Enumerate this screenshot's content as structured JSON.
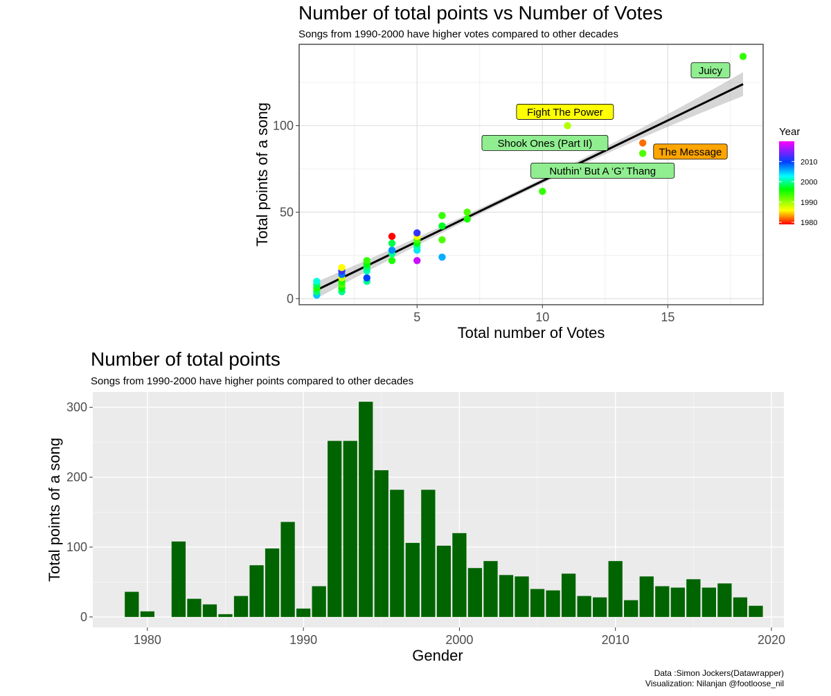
{
  "chart_data": [
    {
      "type": "scatter",
      "title": "Number of total points vs Number of Votes",
      "subtitle": "Songs from 1990-2000 have higher votes compared to other decades",
      "xlabel": "Total number of Votes",
      "ylabel": "Total points of a song",
      "xlim": [
        0.3,
        18.8
      ],
      "ylim": [
        -3.5,
        147
      ],
      "x_ticks": [
        5,
        10,
        15
      ],
      "y_ticks": [
        0,
        50,
        100
      ],
      "grid": true,
      "legend": {
        "title": "Year",
        "position": "right",
        "colorbar_range": [
          1979,
          2020
        ],
        "ticks": [
          1980,
          1990,
          2000,
          2010
        ]
      },
      "trend_line": {
        "x": [
          1,
          18
        ],
        "y": [
          5,
          124
        ],
        "ci_band": true
      },
      "points": [
        {
          "x": 1,
          "y": 2,
          "year": 2005
        },
        {
          "x": 1,
          "y": 4,
          "year": 1999
        },
        {
          "x": 1,
          "y": 6,
          "year": 1995
        },
        {
          "x": 1,
          "y": 8,
          "year": 1998
        },
        {
          "x": 1,
          "y": 10,
          "year": 2002
        },
        {
          "x": 2,
          "y": 4,
          "year": 2000
        },
        {
          "x": 2,
          "y": 6,
          "year": 1996
        },
        {
          "x": 2,
          "y": 8,
          "year": 1993
        },
        {
          "x": 2,
          "y": 10,
          "year": 1995
        },
        {
          "x": 2,
          "y": 12,
          "year": 1988
        },
        {
          "x": 2,
          "y": 14,
          "year": 2008
        },
        {
          "x": 2,
          "y": 16,
          "year": 2012
        },
        {
          "x": 2,
          "y": 18,
          "year": 1986
        },
        {
          "x": 3,
          "y": 10,
          "year": 2000
        },
        {
          "x": 3,
          "y": 12,
          "year": 2010
        },
        {
          "x": 3,
          "y": 16,
          "year": 2001
        },
        {
          "x": 3,
          "y": 18,
          "year": 1999
        },
        {
          "x": 3,
          "y": 20,
          "year": 1996
        },
        {
          "x": 3,
          "y": 22,
          "year": 1994
        },
        {
          "x": 4,
          "y": 22,
          "year": 1995
        },
        {
          "x": 4,
          "y": 26,
          "year": 2000
        },
        {
          "x": 4,
          "y": 28,
          "year": 2007
        },
        {
          "x": 4,
          "y": 32,
          "year": 1998
        },
        {
          "x": 4,
          "y": 36,
          "year": 1979
        },
        {
          "x": 5,
          "y": 22,
          "year": 2018
        },
        {
          "x": 5,
          "y": 28,
          "year": 2004
        },
        {
          "x": 5,
          "y": 30,
          "year": 2001
        },
        {
          "x": 5,
          "y": 32,
          "year": 1996
        },
        {
          "x": 5,
          "y": 34,
          "year": 1993
        },
        {
          "x": 5,
          "y": 36,
          "year": 1986
        },
        {
          "x": 5,
          "y": 38,
          "year": 2012
        },
        {
          "x": 6,
          "y": 24,
          "year": 2006
        },
        {
          "x": 6,
          "y": 34,
          "year": 1993
        },
        {
          "x": 6,
          "y": 42,
          "year": 1997
        },
        {
          "x": 6,
          "y": 48,
          "year": 1994
        },
        {
          "x": 7,
          "y": 46,
          "year": 1995
        },
        {
          "x": 7,
          "y": 50,
          "year": 1993
        },
        {
          "x": 10,
          "y": 62,
          "year": 1994
        },
        {
          "x": 11,
          "y": 100,
          "year": 1989
        },
        {
          "x": 14,
          "y": 90,
          "year": 1982
        },
        {
          "x": 14,
          "y": 84,
          "year": 1993
        },
        {
          "x": 18,
          "y": 140,
          "year": 1994
        }
      ],
      "annotations": [
        {
          "text": "Juicy",
          "x": 16.7,
          "y": 132,
          "fill": "#90ee90"
        },
        {
          "text": "Fight The Power",
          "x": 10.9,
          "y": 108,
          "fill": "#ffff00"
        },
        {
          "text": "Shook Ones (Part II)",
          "x": 10.1,
          "y": 90,
          "fill": "#90ee90"
        },
        {
          "text": "The Message",
          "x": 15.9,
          "y": 85,
          "fill": "#ffa500"
        },
        {
          "text": "Nuthin’ But A ‘G’ Thang",
          "x": 12.4,
          "y": 74,
          "fill": "#90ee90"
        }
      ]
    },
    {
      "type": "bar",
      "title": "Number of total points",
      "subtitle": "Songs from 1990-2000 have higher points compared to other decades",
      "xlabel": "Gender",
      "ylabel": "Total points of a song",
      "xlim": [
        1976.5,
        2020.8
      ],
      "ylim": [
        -15,
        322
      ],
      "x_ticks": [
        1980,
        1990,
        2000,
        2010,
        2020
      ],
      "y_ticks": [
        0,
        100,
        200,
        300
      ],
      "bar_color": "#006400",
      "panel_background": "#ebebeb",
      "x": [
        1979,
        1980,
        1982,
        1983,
        1984,
        1985,
        1986,
        1987,
        1988,
        1989,
        1990,
        1991,
        1992,
        1993,
        1994,
        1995,
        1996,
        1997,
        1998,
        1999,
        2000,
        2001,
        2002,
        2003,
        2004,
        2005,
        2006,
        2007,
        2008,
        2009,
        2010,
        2011,
        2012,
        2013,
        2014,
        2015,
        2016,
        2017,
        2018,
        2019
      ],
      "values": [
        36,
        8,
        108,
        26,
        18,
        4,
        30,
        74,
        98,
        136,
        12,
        44,
        252,
        252,
        308,
        210,
        182,
        106,
        182,
        102,
        120,
        70,
        80,
        60,
        58,
        40,
        38,
        62,
        30,
        28,
        80,
        24,
        58,
        44,
        42,
        54,
        42,
        48,
        28,
        16
      ]
    }
  ],
  "caption": {
    "line1": "Data :Simon Jockers(Datawrapper)",
    "line2": "Visualization: Nilanjan @footloose_nil"
  }
}
